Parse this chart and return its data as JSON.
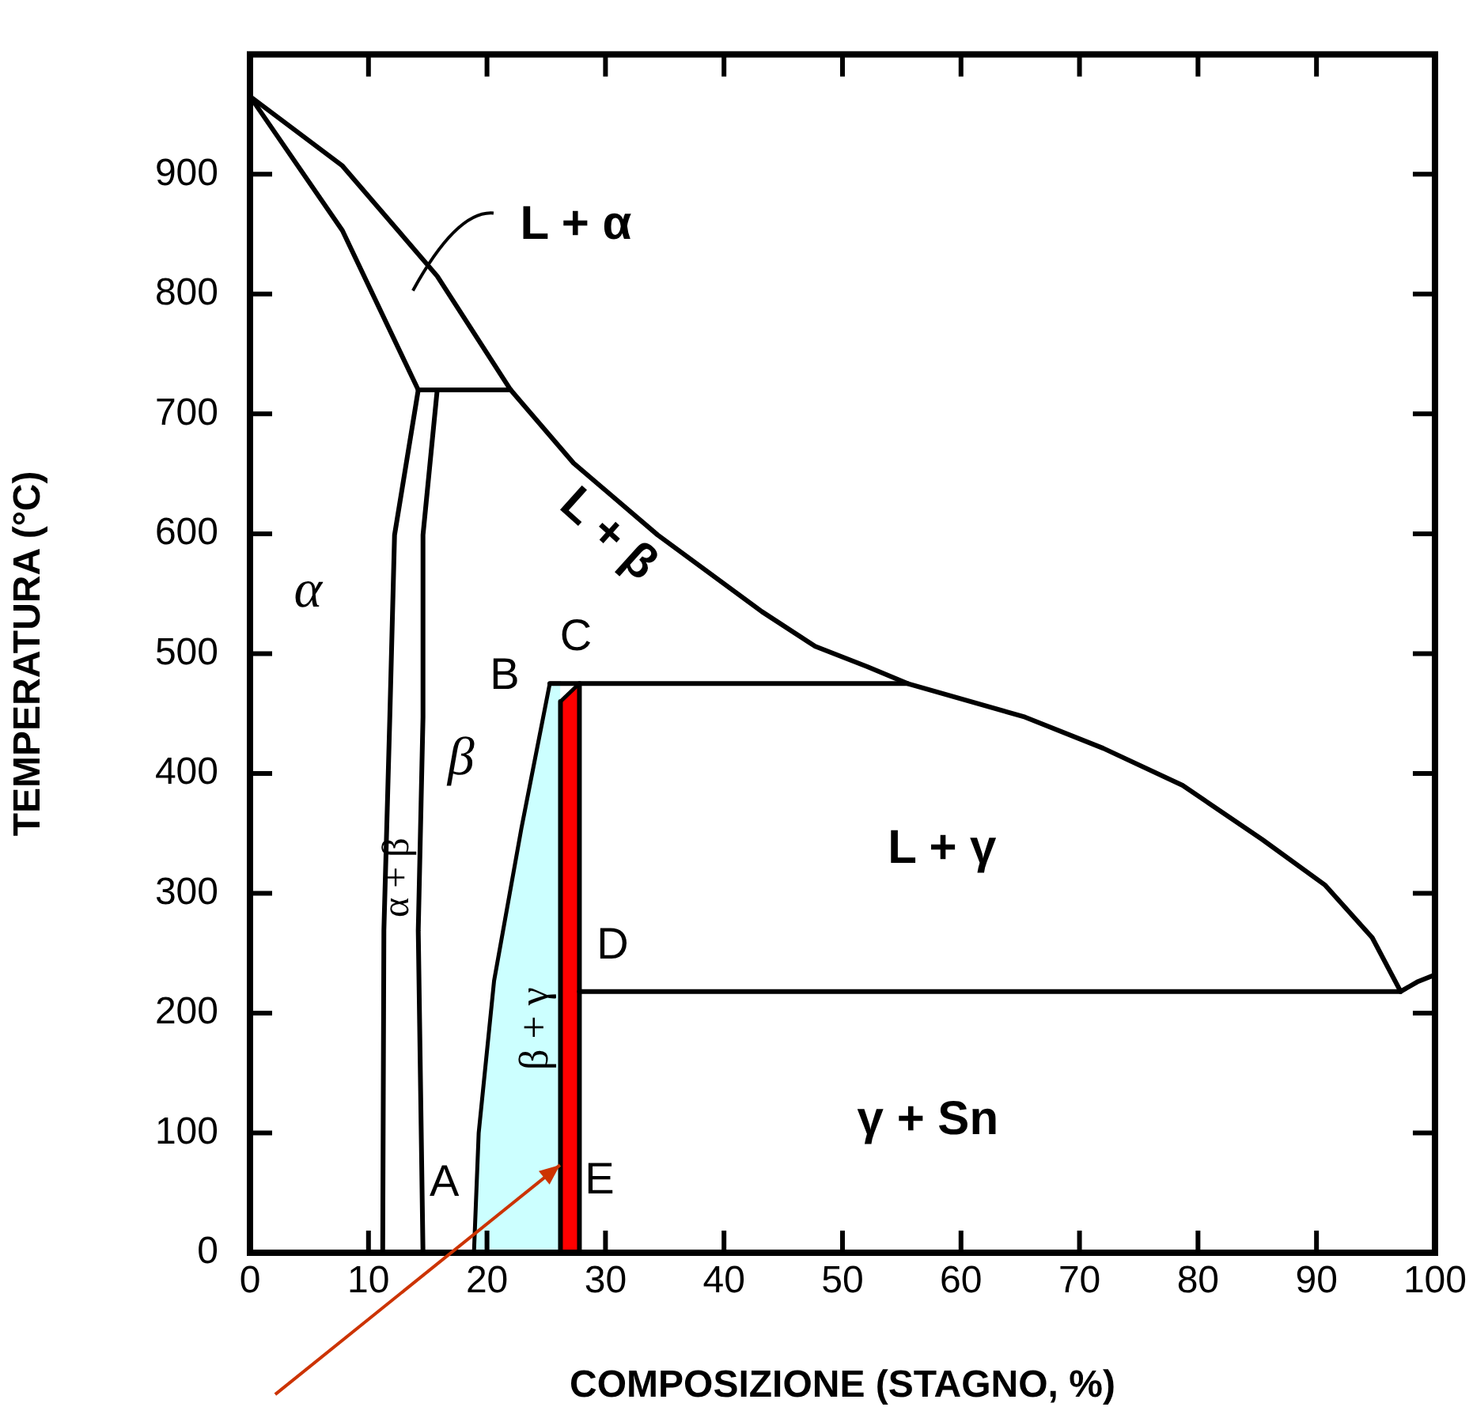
{
  "chart_data": {
    "type": "line",
    "xlabel": "COMPOSIZIONE (STAGNO, %)",
    "ylabel": "TEMPERATURA (°C)",
    "xlim": [
      0,
      100
    ],
    "xticks": [
      0,
      10,
      20,
      30,
      40,
      50,
      60,
      70,
      80,
      90,
      100
    ],
    "ylim": [
      0,
      1000
    ],
    "yticks": [
      0,
      100,
      200,
      300,
      400,
      500,
      600,
      700,
      800,
      900
    ],
    "grid": false,
    "legend": false,
    "marker": "none",
    "series": [
      {
        "type": "area",
        "color": "#ccffff",
        "x": [
          18.9,
          19.3,
          20.6,
          22.9,
          25.3,
          26.2
        ],
        "values": [
          0,
          100,
          227,
          354,
          475,
          475
        ]
      },
      {
        "type": "area",
        "color": "#ff0000",
        "x": [
          26.2,
          27.8
        ],
        "values": [
          460,
          475
        ]
      },
      {
        "color": "#000000",
        "x": [
          0,
          7.8,
          15.8,
          22,
          27.3,
          34.4,
          43.2,
          47.7,
          52.1,
          55.5,
          65.4,
          72,
          78.7,
          85.4,
          90.7,
          94.7,
          97.1
        ],
        "values": [
          965,
          907,
          815,
          720,
          659,
          599,
          535,
          506,
          489,
          475,
          447,
          421,
          390,
          345,
          307,
          263,
          218
        ]
      },
      {
        "color": "#000000",
        "x": [
          97.1,
          98.5,
          100
        ],
        "values": [
          218,
          226,
          232
        ]
      },
      {
        "color": "#000000",
        "x": [
          0,
          7.8,
          14.2
        ],
        "values": [
          965,
          853,
          720
        ]
      },
      {
        "color": "#000000",
        "x": [
          14.2,
          22
        ],
        "values": [
          720,
          720
        ]
      },
      {
        "color": "#000000",
        "x": [
          14.2,
          12.2,
          11.8,
          11.3,
          11.2
        ],
        "values": [
          720,
          599,
          447,
          269,
          0
        ]
      },
      {
        "color": "#000000",
        "x": [
          15.8,
          14.6,
          14.6,
          14.2,
          14.6
        ],
        "values": [
          720,
          599,
          447,
          269,
          0
        ]
      },
      {
        "color": "#000000",
        "x": [
          25.3,
          55.5
        ],
        "values": [
          475,
          475
        ]
      },
      {
        "color": "#000000",
        "x": [
          26.2,
          26.2
        ],
        "values": [
          0,
          460
        ]
      },
      {
        "color": "#000000",
        "x": [
          27.8,
          27.8
        ],
        "values": [
          0,
          475
        ]
      },
      {
        "color": "#000000",
        "x": [
          27.8,
          60,
          97.1
        ],
        "values": [
          218,
          218,
          218
        ]
      }
    ],
    "annotations": [
      "L + α",
      "L + β",
      "α",
      "β",
      "α + β",
      "β + γ",
      "L + γ",
      "γ + Sn",
      "A",
      "B",
      "C",
      "D",
      "E"
    ]
  }
}
